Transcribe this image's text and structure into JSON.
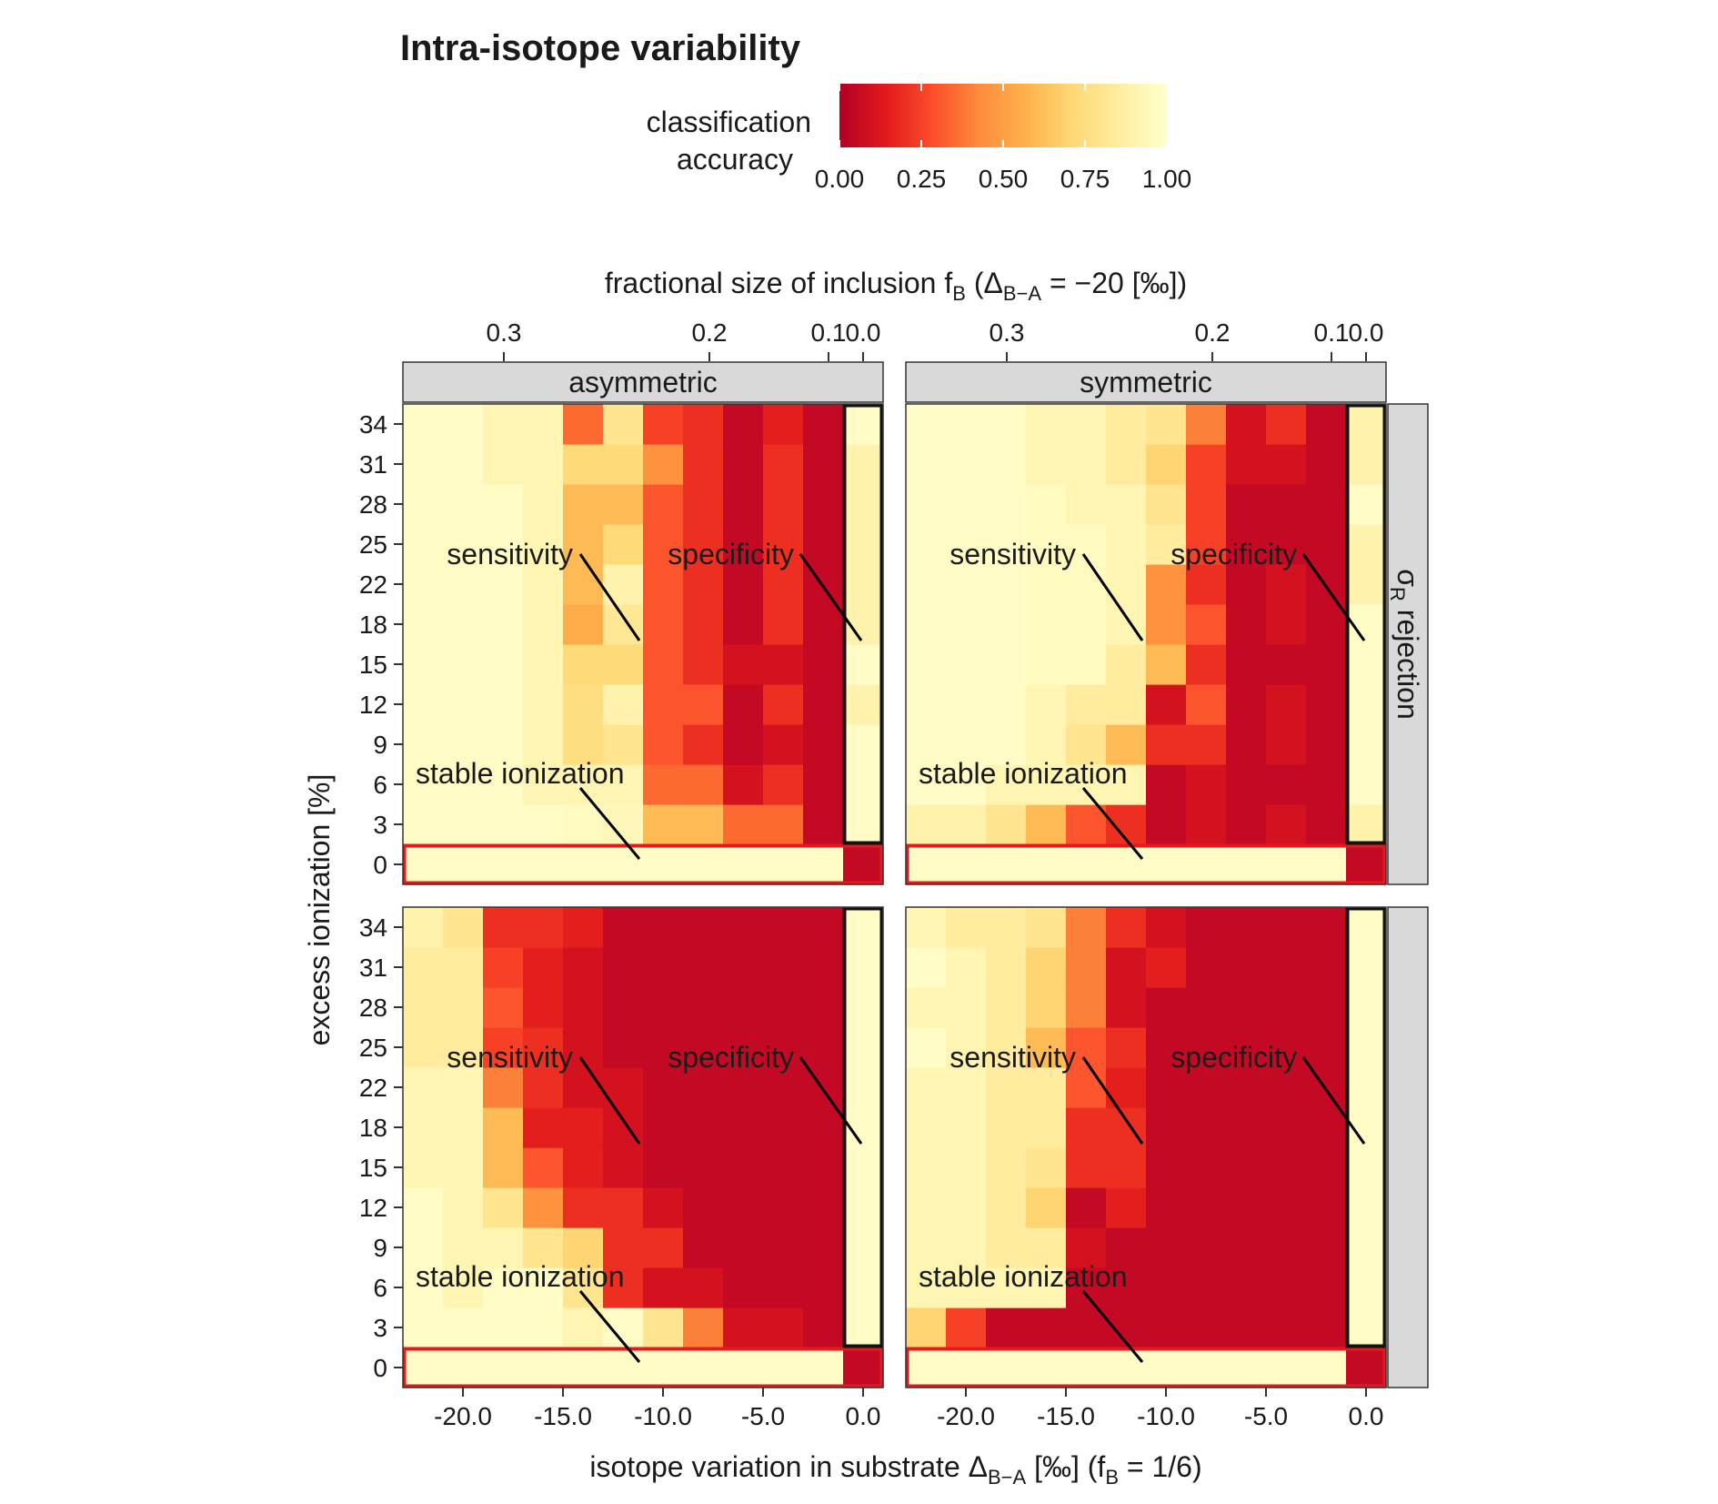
{
  "title": "Intra-isotope variability",
  "legend": {
    "title_line1": "classification",
    "title_line2": "accuracy",
    "ticks": [
      "0.00",
      "0.25",
      "0.50",
      "0.75",
      "1.00"
    ],
    "tick_values": [
      0,
      0.25,
      0.5,
      0.75,
      1
    ],
    "palette": [
      "#b10026",
      "#e31a1c",
      "#fc4e2a",
      "#fd8d3c",
      "#feb24c",
      "#fed976",
      "#ffeda0",
      "#ffffcc"
    ],
    "placement": "top"
  },
  "top_axis": {
    "label_main": "fractional size of inclusion f",
    "label_sub": "B",
    "label_rest1": " (Δ",
    "label_sub2": "B−A",
    "label_rest2": " = −20 [‰])",
    "ticks": [
      "0.3",
      "0.2",
      "0.1",
      "0.0"
    ]
  },
  "bottom_axis": {
    "label_main": "isotope variation in substrate Δ",
    "label_sub": "B−A",
    "label_rest1": " [‰] (f",
    "label_sub2": "B",
    "label_rest2": " = 1/6)",
    "ticks": [
      "-20.0",
      "-15.0",
      "-10.0",
      "-5.0",
      "0.0"
    ]
  },
  "y_axis": {
    "label": "excess ionization [%]",
    "ticks": [
      "34",
      "31",
      "28",
      "25",
      "22",
      "18",
      "15",
      "12",
      "9",
      "6",
      "3",
      "0"
    ]
  },
  "strips": {
    "columns": [
      "asymmetric",
      "symmetric"
    ],
    "rows": [
      "σ",
      "R",
      " rejection",
      ""
    ]
  },
  "annotations": {
    "sensitivity": "sensitivity",
    "specificity": "specificity",
    "stable": "stable ionization"
  },
  "chart_data": {
    "type": "heatmap",
    "x": [
      -22,
      -20,
      -18,
      -16,
      -14,
      -12,
      -10,
      -8,
      -6,
      -4,
      -2,
      0
    ],
    "y": [
      0,
      3,
      6,
      9,
      12,
      15,
      18,
      22,
      25,
      28,
      31,
      34
    ],
    "value_range": [
      0,
      1
    ],
    "panels": [
      {
        "row": "σR rejection",
        "column": "asymmetric",
        "values": [
          [
            0.98,
            0.98,
            0.98,
            0.98,
            0.98,
            0.98,
            0.98,
            0.98,
            0.98,
            0.98,
            0.98,
            0.05
          ],
          [
            0.98,
            0.98,
            0.98,
            0.98,
            0.96,
            0.94,
            0.6,
            0.6,
            0.35,
            0.35,
            0.05,
            0.98
          ],
          [
            0.98,
            0.98,
            0.98,
            0.92,
            0.92,
            0.92,
            0.35,
            0.35,
            0.1,
            0.2,
            0.05,
            0.98
          ],
          [
            0.98,
            0.98,
            0.98,
            0.92,
            0.75,
            0.8,
            0.3,
            0.2,
            0.05,
            0.1,
            0.05,
            0.98
          ],
          [
            0.98,
            0.98,
            0.98,
            0.92,
            0.75,
            0.9,
            0.3,
            0.3,
            0.05,
            0.2,
            0.05,
            0.9
          ],
          [
            0.98,
            0.98,
            0.98,
            0.92,
            0.72,
            0.72,
            0.3,
            0.2,
            0.1,
            0.1,
            0.05,
            0.98
          ],
          [
            0.98,
            0.98,
            0.98,
            0.92,
            0.55,
            0.82,
            0.3,
            0.2,
            0.05,
            0.2,
            0.05,
            0.9
          ],
          [
            0.98,
            0.98,
            0.98,
            0.92,
            0.6,
            0.9,
            0.3,
            0.2,
            0.05,
            0.2,
            0.05,
            0.9
          ],
          [
            0.98,
            0.98,
            0.98,
            0.92,
            0.6,
            0.72,
            0.3,
            0.2,
            0.05,
            0.2,
            0.05,
            0.9
          ],
          [
            0.98,
            0.98,
            0.98,
            0.92,
            0.6,
            0.6,
            0.3,
            0.2,
            0.05,
            0.2,
            0.05,
            0.9
          ],
          [
            0.98,
            0.98,
            0.92,
            0.92,
            0.72,
            0.72,
            0.45,
            0.2,
            0.05,
            0.2,
            0.05,
            0.9
          ],
          [
            0.98,
            0.98,
            0.92,
            0.92,
            0.35,
            0.8,
            0.25,
            0.2,
            0.05,
            0.15,
            0.05,
            0.98
          ]
        ]
      },
      {
        "row": "σR rejection",
        "column": "symmetric",
        "values": [
          [
            0.98,
            0.98,
            0.98,
            0.98,
            0.98,
            0.98,
            0.98,
            0.98,
            0.98,
            0.98,
            0.98,
            0.05
          ],
          [
            0.9,
            0.9,
            0.8,
            0.6,
            0.3,
            0.2,
            0.05,
            0.1,
            0.05,
            0.1,
            0.05,
            0.9
          ],
          [
            0.98,
            0.98,
            0.92,
            0.92,
            0.92,
            0.92,
            0.05,
            0.1,
            0.05,
            0.05,
            0.05,
            0.98
          ],
          [
            0.98,
            0.98,
            0.98,
            0.92,
            0.8,
            0.6,
            0.2,
            0.2,
            0.05,
            0.1,
            0.05,
            0.98
          ],
          [
            0.98,
            0.98,
            0.98,
            0.92,
            0.85,
            0.85,
            0.1,
            0.3,
            0.05,
            0.1,
            0.05,
            0.98
          ],
          [
            0.98,
            0.98,
            0.98,
            0.96,
            0.96,
            0.85,
            0.6,
            0.2,
            0.05,
            0.05,
            0.05,
            0.98
          ],
          [
            0.98,
            0.98,
            0.98,
            0.96,
            0.96,
            0.92,
            0.45,
            0.3,
            0.05,
            0.1,
            0.05,
            0.98
          ],
          [
            0.98,
            0.98,
            0.98,
            0.96,
            0.96,
            0.92,
            0.45,
            0.2,
            0.05,
            0.1,
            0.05,
            0.9
          ],
          [
            0.98,
            0.98,
            0.98,
            0.96,
            0.96,
            0.92,
            0.85,
            0.25,
            0.05,
            0.05,
            0.05,
            0.9
          ],
          [
            0.98,
            0.98,
            0.98,
            0.96,
            0.92,
            0.92,
            0.8,
            0.25,
            0.05,
            0.05,
            0.05,
            0.98
          ],
          [
            0.98,
            0.98,
            0.98,
            0.92,
            0.92,
            0.85,
            0.7,
            0.25,
            0.1,
            0.1,
            0.05,
            0.9
          ],
          [
            0.98,
            0.98,
            0.98,
            0.92,
            0.92,
            0.85,
            0.8,
            0.4,
            0.1,
            0.2,
            0.05,
            0.9
          ]
        ]
      },
      {
        "row": "",
        "column": "asymmetric",
        "values": [
          [
            0.98,
            0.98,
            0.98,
            0.98,
            0.98,
            0.98,
            0.98,
            0.98,
            0.98,
            0.98,
            0.98,
            0.05
          ],
          [
            0.98,
            0.98,
            0.98,
            0.98,
            0.92,
            0.98,
            0.8,
            0.4,
            0.1,
            0.1,
            0.05,
            0.98
          ],
          [
            0.98,
            0.92,
            0.98,
            0.98,
            0.8,
            0.2,
            0.1,
            0.1,
            0.05,
            0.05,
            0.05,
            0.98
          ],
          [
            0.98,
            0.92,
            0.92,
            0.8,
            0.7,
            0.2,
            0.2,
            0.05,
            0.05,
            0.05,
            0.05,
            0.98
          ],
          [
            0.98,
            0.92,
            0.8,
            0.45,
            0.2,
            0.2,
            0.1,
            0.05,
            0.05,
            0.05,
            0.05,
            0.98
          ],
          [
            0.92,
            0.92,
            0.6,
            0.3,
            0.15,
            0.1,
            0.05,
            0.05,
            0.05,
            0.05,
            0.05,
            0.98
          ],
          [
            0.92,
            0.92,
            0.6,
            0.15,
            0.15,
            0.1,
            0.05,
            0.05,
            0.05,
            0.05,
            0.05,
            0.98
          ],
          [
            0.92,
            0.92,
            0.4,
            0.2,
            0.1,
            0.1,
            0.05,
            0.05,
            0.05,
            0.05,
            0.05,
            0.98
          ],
          [
            0.85,
            0.85,
            0.25,
            0.2,
            0.1,
            0.05,
            0.05,
            0.05,
            0.05,
            0.05,
            0.05,
            0.98
          ],
          [
            0.85,
            0.85,
            0.3,
            0.15,
            0.1,
            0.05,
            0.05,
            0.05,
            0.05,
            0.05,
            0.05,
            0.98
          ],
          [
            0.85,
            0.85,
            0.25,
            0.15,
            0.1,
            0.05,
            0.05,
            0.05,
            0.05,
            0.05,
            0.05,
            0.98
          ],
          [
            0.9,
            0.8,
            0.2,
            0.2,
            0.15,
            0.05,
            0.05,
            0.05,
            0.05,
            0.05,
            0.05,
            0.98
          ]
        ]
      },
      {
        "row": "",
        "column": "symmetric",
        "values": [
          [
            0.98,
            0.98,
            0.98,
            0.98,
            0.98,
            0.98,
            0.98,
            0.98,
            0.98,
            0.98,
            0.98,
            0.05
          ],
          [
            0.7,
            0.25,
            0.05,
            0.05,
            0.05,
            0.05,
            0.05,
            0.05,
            0.05,
            0.05,
            0.05,
            0.98
          ],
          [
            0.92,
            0.92,
            0.92,
            0.92,
            0.05,
            0.05,
            0.05,
            0.05,
            0.05,
            0.05,
            0.05,
            0.98
          ],
          [
            0.92,
            0.92,
            0.85,
            0.85,
            0.1,
            0.05,
            0.05,
            0.05,
            0.05,
            0.05,
            0.05,
            0.98
          ],
          [
            0.92,
            0.92,
            0.85,
            0.7,
            0.05,
            0.15,
            0.05,
            0.05,
            0.05,
            0.05,
            0.05,
            0.98
          ],
          [
            0.92,
            0.92,
            0.85,
            0.8,
            0.2,
            0.2,
            0.05,
            0.05,
            0.05,
            0.05,
            0.05,
            0.98
          ],
          [
            0.92,
            0.92,
            0.85,
            0.85,
            0.2,
            0.2,
            0.05,
            0.05,
            0.05,
            0.05,
            0.05,
            0.98
          ],
          [
            0.92,
            0.92,
            0.85,
            0.85,
            0.3,
            0.15,
            0.05,
            0.05,
            0.05,
            0.05,
            0.05,
            0.98
          ],
          [
            0.98,
            0.92,
            0.85,
            0.6,
            0.3,
            0.2,
            0.05,
            0.05,
            0.05,
            0.05,
            0.05,
            0.98
          ],
          [
            0.92,
            0.92,
            0.85,
            0.7,
            0.4,
            0.1,
            0.05,
            0.05,
            0.05,
            0.05,
            0.05,
            0.98
          ],
          [
            0.98,
            0.92,
            0.85,
            0.7,
            0.4,
            0.1,
            0.15,
            0.05,
            0.05,
            0.05,
            0.05,
            0.98
          ],
          [
            0.92,
            0.85,
            0.85,
            0.8,
            0.4,
            0.2,
            0.1,
            0.05,
            0.05,
            0.05,
            0.05,
            0.98
          ]
        ]
      }
    ]
  }
}
